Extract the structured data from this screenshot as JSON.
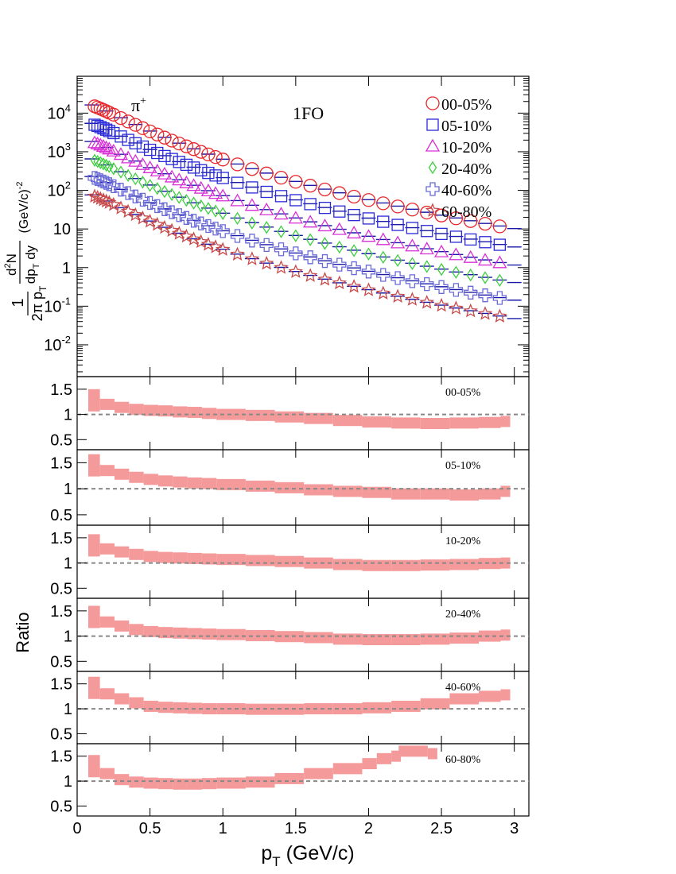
{
  "chart_data": [
    {
      "type": "scatter",
      "particle_label": "π",
      "particle_charge": "+",
      "model_label": "1FO",
      "ylabel_main": "1/(2π pT) d²N/(dpT dy) (GeV/c)⁻²",
      "ylabel_prefactor": "1",
      "ylabel_denominator_prefix": "2π p",
      "ylabel_numerator_d2": "d",
      "ylabel_numerator_sup": "2",
      "ylabel_numerator_N": "N",
      "ylabel_denominator_dp": "dp",
      "ylabel_subscript_T": "T",
      "ylabel_dy": "dy",
      "ylabel_units": "(GeV/c)",
      "ylabel_units_exp": "-2",
      "y_scale": "log",
      "ylim": [
        0.0015,
        90000
      ],
      "xlim": [
        0,
        3.1
      ],
      "yticks": [
        {
          "value": 10000,
          "base": "10",
          "exp": "4"
        },
        {
          "value": 1000,
          "base": "10",
          "exp": "3"
        },
        {
          "value": 100,
          "base": "10",
          "exp": "2"
        },
        {
          "value": 10,
          "base": "10",
          "exp": ""
        },
        {
          "value": 1,
          "base": "1",
          "exp": ""
        },
        {
          "value": 0.1,
          "base": "10",
          "exp": "-1"
        },
        {
          "value": 0.01,
          "base": "10",
          "exp": "-2"
        }
      ],
      "legend_position": "top-right",
      "series": [
        {
          "name": "00-05%",
          "marker": "circle",
          "color": "#e8262b",
          "scale": 1,
          "values_at_ref": [
            15000,
            4700,
            190
          ]
        },
        {
          "name": "05-10%",
          "marker": "square",
          "color": "#2a2ad8",
          "scale": 0.33,
          "values_at_ref": [
            5000,
            1550,
            65
          ]
        },
        {
          "name": "10-20%",
          "marker": "triangle",
          "color": "#d92fd6",
          "scale": 0.115,
          "values_at_ref": [
            1700,
            540,
            22
          ]
        },
        {
          "name": "20-40%",
          "marker": "diamond",
          "color": "#3fcf3f",
          "scale": 0.04,
          "values_at_ref": [
            600,
            190,
            7.5
          ]
        },
        {
          "name": "40-60%",
          "marker": "cross",
          "color": "#6a6ad8",
          "scale": 0.014,
          "values_at_ref": [
            210,
            65,
            2.5
          ]
        },
        {
          "name": "60-80%",
          "marker": "star",
          "color": "#c84a4a",
          "scale": 0.0045,
          "values_at_ref": [
            70,
            21,
            0.8
          ]
        }
      ],
      "pt_points": [
        0.12,
        0.14,
        0.16,
        0.18,
        0.2,
        0.22,
        0.25,
        0.3,
        0.35,
        0.4,
        0.45,
        0.5,
        0.55,
        0.6,
        0.65,
        0.7,
        0.75,
        0.8,
        0.85,
        0.9,
        0.95,
        1.0,
        1.1,
        1.2,
        1.3,
        1.4,
        1.5,
        1.6,
        1.7,
        1.8,
        1.9,
        2.0,
        2.1,
        2.2,
        2.3,
        2.4,
        2.5,
        2.6,
        2.7,
        2.8,
        2.9
      ],
      "model_pt_points": [
        0.1,
        0.2,
        0.3,
        0.4,
        0.5,
        0.6,
        0.7,
        0.8,
        0.9,
        1.0,
        1.1,
        1.2,
        1.3,
        1.4,
        1.5,
        1.6,
        1.7,
        1.8,
        1.9,
        2.0,
        2.1,
        2.2,
        2.3,
        2.4,
        2.5,
        2.6,
        2.7,
        2.8,
        2.9,
        3.0
      ]
    },
    {
      "type": "area",
      "xlabel_main": "p",
      "xlabel_sub": "T",
      "xlabel_units": "(GeV/c)",
      "ylabel": "Ratio",
      "xticks": [
        "0",
        "0.5",
        "1",
        "1.5",
        "2",
        "2.5",
        "3"
      ],
      "xtick_values": [
        0,
        0.5,
        1,
        1.5,
        2,
        2.5,
        3
      ],
      "yticks": [
        "1.5",
        "1",
        "0.5"
      ],
      "ytick_values": [
        1.5,
        1,
        0.5
      ],
      "ylim": [
        0.3,
        1.75
      ],
      "reference_line": 1,
      "band_color": "#f59a9a",
      "panels": [
        {
          "label": "00-05%",
          "x": [
            0.12,
            0.2,
            0.3,
            0.4,
            0.5,
            0.6,
            0.7,
            0.8,
            0.9,
            1.0,
            1.2,
            1.4,
            1.6,
            1.8,
            2.0,
            2.2,
            2.4,
            2.6,
            2.8,
            2.95
          ],
          "y": [
            1.28,
            1.2,
            1.14,
            1.1,
            1.08,
            1.07,
            1.05,
            1.04,
            1.02,
            1.0,
            0.98,
            0.95,
            0.92,
            0.88,
            0.85,
            0.83,
            0.82,
            0.83,
            0.84,
            0.86
          ]
        },
        {
          "label": "05-10%",
          "x": [
            0.12,
            0.2,
            0.3,
            0.4,
            0.5,
            0.6,
            0.7,
            0.8,
            0.9,
            1.0,
            1.2,
            1.4,
            1.6,
            1.8,
            2.0,
            2.2,
            2.4,
            2.6,
            2.8,
            2.95
          ],
          "y": [
            1.45,
            1.35,
            1.28,
            1.22,
            1.18,
            1.15,
            1.13,
            1.11,
            1.1,
            1.08,
            1.05,
            1.02,
            0.98,
            0.95,
            0.93,
            0.9,
            0.9,
            0.88,
            0.9,
            0.95
          ]
        },
        {
          "label": "10-20%",
          "x": [
            0.12,
            0.2,
            0.3,
            0.4,
            0.5,
            0.6,
            0.7,
            0.8,
            0.9,
            1.0,
            1.2,
            1.4,
            1.6,
            1.8,
            2.0,
            2.2,
            2.4,
            2.6,
            2.8,
            2.95
          ],
          "y": [
            1.35,
            1.28,
            1.22,
            1.17,
            1.13,
            1.11,
            1.1,
            1.09,
            1.08,
            1.07,
            1.05,
            1.03,
            1.0,
            0.97,
            0.95,
            0.95,
            0.96,
            0.97,
            0.99,
            1.0
          ]
        },
        {
          "label": "20-40%",
          "x": [
            0.12,
            0.2,
            0.3,
            0.4,
            0.5,
            0.6,
            0.7,
            0.8,
            0.9,
            1.0,
            1.2,
            1.4,
            1.6,
            1.8,
            2.0,
            2.2,
            2.4,
            2.6,
            2.8,
            2.95
          ],
          "y": [
            1.38,
            1.28,
            1.2,
            1.13,
            1.09,
            1.07,
            1.06,
            1.05,
            1.04,
            1.03,
            1.01,
            0.99,
            0.97,
            0.94,
            0.93,
            0.93,
            0.94,
            0.96,
            1.0,
            1.02
          ]
        },
        {
          "label": "40-60%",
          "x": [
            0.12,
            0.2,
            0.3,
            0.4,
            0.5,
            0.6,
            0.7,
            0.8,
            0.9,
            1.0,
            1.2,
            1.4,
            1.6,
            1.8,
            2.0,
            2.2,
            2.4,
            2.6,
            2.8,
            2.95
          ],
          "y": [
            1.42,
            1.3,
            1.2,
            1.12,
            1.05,
            1.03,
            1.02,
            1.01,
            1.0,
            1.0,
            0.99,
            0.99,
            1.0,
            1.0,
            1.02,
            1.05,
            1.1,
            1.2,
            1.25,
            1.28
          ]
        },
        {
          "label": "60-80%",
          "x": [
            0.12,
            0.2,
            0.3,
            0.4,
            0.5,
            0.6,
            0.7,
            0.8,
            0.9,
            1.0,
            1.2,
            1.4,
            1.6,
            1.8,
            2.0,
            2.1,
            2.2,
            2.25,
            2.45
          ],
          "y": [
            1.3,
            1.15,
            1.03,
            0.98,
            0.96,
            0.95,
            0.94,
            0.94,
            0.95,
            0.96,
            0.98,
            1.05,
            1.15,
            1.25,
            1.35,
            1.45,
            1.5,
            1.6,
            1.55
          ]
        }
      ]
    }
  ]
}
